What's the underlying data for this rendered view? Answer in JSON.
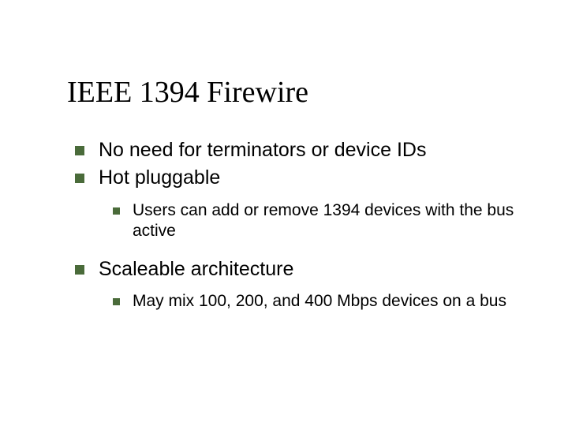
{
  "slide": {
    "title": "IEEE 1394 Firewire",
    "title_fontsize": 38,
    "title_color": "#000000",
    "background_color": "#ffffff",
    "bullet_color": "#4a6b3a",
    "level1_fontsize": 25,
    "level2_fontsize": 21,
    "items": [
      {
        "level": 1,
        "text": "No need for terminators or device IDs"
      },
      {
        "level": 1,
        "text": "Hot pluggable"
      },
      {
        "level": 2,
        "text": "Users can add or remove 1394 devices with the bus active"
      },
      {
        "level": 1,
        "text": "Scaleable architecture"
      },
      {
        "level": 2,
        "text": "May mix 100, 200, and 400 Mbps devices on a bus"
      }
    ]
  }
}
